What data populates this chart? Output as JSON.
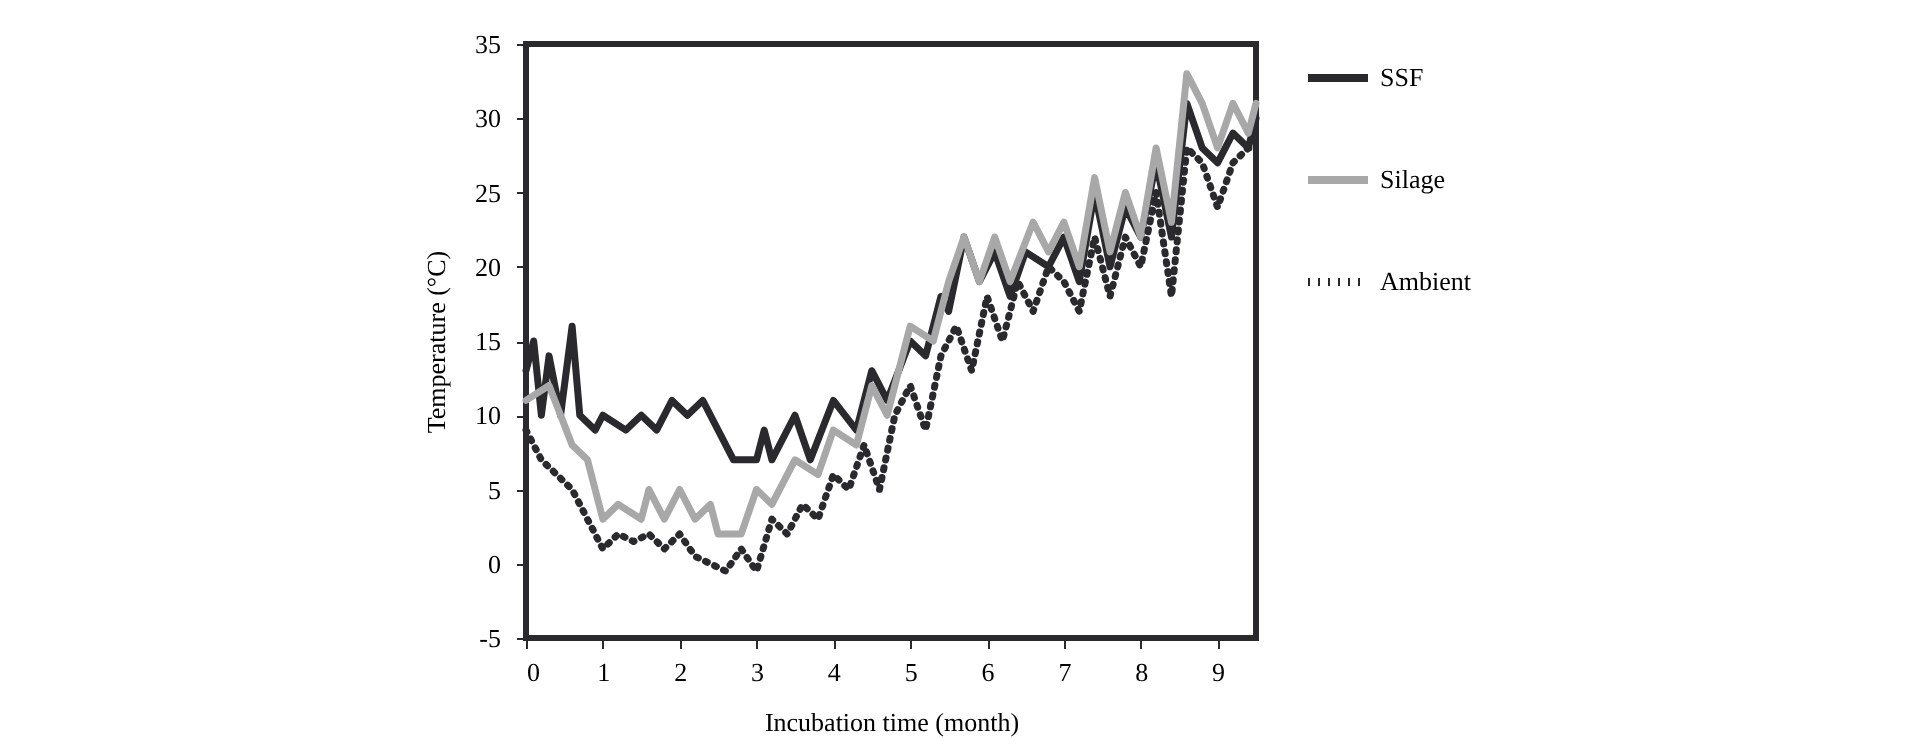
{
  "chart_data": {
    "type": "line",
    "xlabel": "Incubation time (month)",
    "ylabel": "Temperature (°C)",
    "xlim": [
      0,
      9.5
    ],
    "xticks": [
      0,
      1,
      2,
      3,
      4,
      5,
      6,
      7,
      8,
      9
    ],
    "ylim": [
      -5,
      35
    ],
    "yticks": [
      -5,
      0,
      5,
      10,
      15,
      20,
      25,
      30,
      35
    ],
    "grid": false,
    "legend": "right",
    "marker": "none",
    "series": [
      {
        "name": "SSF",
        "color": "#2a2a2e",
        "line_style": "solid",
        "x": [
          0,
          0.1,
          0.2,
          0.3,
          0.45,
          0.6,
          0.7,
          0.9,
          1.0,
          1.3,
          1.5,
          1.7,
          1.9,
          2.1,
          2.3,
          2.5,
          2.7,
          3.0,
          3.1,
          3.2,
          3.5,
          3.7,
          4.0,
          4.3,
          4.5,
          4.7,
          5.0,
          5.2,
          5.4,
          5.5,
          5.7,
          5.9,
          6.1,
          6.3,
          6.5,
          6.8,
          7.0,
          7.2,
          7.4,
          7.6,
          7.8,
          8.0,
          8.2,
          8.4,
          8.6,
          8.8,
          9.0,
          9.2,
          9.4,
          9.5
        ],
        "values": [
          13,
          15,
          10,
          14,
          10,
          16,
          10,
          9,
          10,
          9,
          10,
          9,
          11,
          10,
          11,
          9,
          7,
          7,
          9,
          7,
          10,
          7,
          11,
          9,
          13,
          11,
          15,
          14,
          18,
          17,
          22,
          19,
          21,
          18,
          21,
          20,
          22,
          19,
          25,
          20,
          24,
          22,
          27,
          22,
          31,
          28,
          27,
          29,
          28,
          30
        ]
      },
      {
        "name": "Silage",
        "color": "#a8a8a8",
        "line_style": "solid",
        "x": [
          0,
          0.3,
          0.6,
          0.8,
          1.0,
          1.2,
          1.5,
          1.6,
          1.8,
          2.0,
          2.2,
          2.4,
          2.5,
          2.8,
          3.0,
          3.2,
          3.5,
          3.8,
          4.0,
          4.3,
          4.5,
          4.7,
          5.0,
          5.3,
          5.5,
          5.7,
          5.9,
          6.1,
          6.3,
          6.6,
          6.8,
          7.0,
          7.2,
          7.4,
          7.6,
          7.8,
          8.0,
          8.2,
          8.4,
          8.6,
          8.8,
          9.0,
          9.2,
          9.4,
          9.5
        ],
        "values": [
          11,
          12,
          8,
          7,
          3,
          4,
          3,
          5,
          3,
          5,
          3,
          4,
          2,
          2,
          5,
          4,
          7,
          6,
          9,
          8,
          12,
          10,
          16,
          15,
          19,
          22,
          19,
          22,
          19,
          23,
          21,
          23,
          20,
          26,
          21,
          25,
          22,
          28,
          23,
          33,
          31,
          28,
          31,
          29,
          31
        ]
      },
      {
        "name": "Ambient",
        "color": "#2a2a2e",
        "line_style": "dotted",
        "x": [
          0,
          0.2,
          0.4,
          0.6,
          0.8,
          1.0,
          1.2,
          1.4,
          1.6,
          1.8,
          2.0,
          2.2,
          2.4,
          2.6,
          2.8,
          3.0,
          3.2,
          3.4,
          3.6,
          3.8,
          4.0,
          4.2,
          4.4,
          4.6,
          4.8,
          5.0,
          5.2,
          5.4,
          5.6,
          5.8,
          6.0,
          6.2,
          6.4,
          6.6,
          6.8,
          7.0,
          7.2,
          7.4,
          7.6,
          7.8,
          8.0,
          8.2,
          8.4,
          8.6,
          8.8,
          9.0,
          9.2,
          9.4,
          9.5
        ],
        "values": [
          9,
          7,
          6,
          5,
          3,
          1,
          2,
          1.5,
          2,
          1,
          2,
          0.5,
          0,
          -0.5,
          1,
          -0.5,
          3,
          2,
          4,
          3,
          6,
          5,
          8,
          5,
          10,
          12,
          9,
          14,
          16,
          13,
          18,
          15,
          19,
          17,
          20,
          19,
          17,
          22,
          18,
          22,
          20,
          25,
          18,
          28,
          27,
          24,
          27,
          28,
          28
        ]
      }
    ]
  }
}
